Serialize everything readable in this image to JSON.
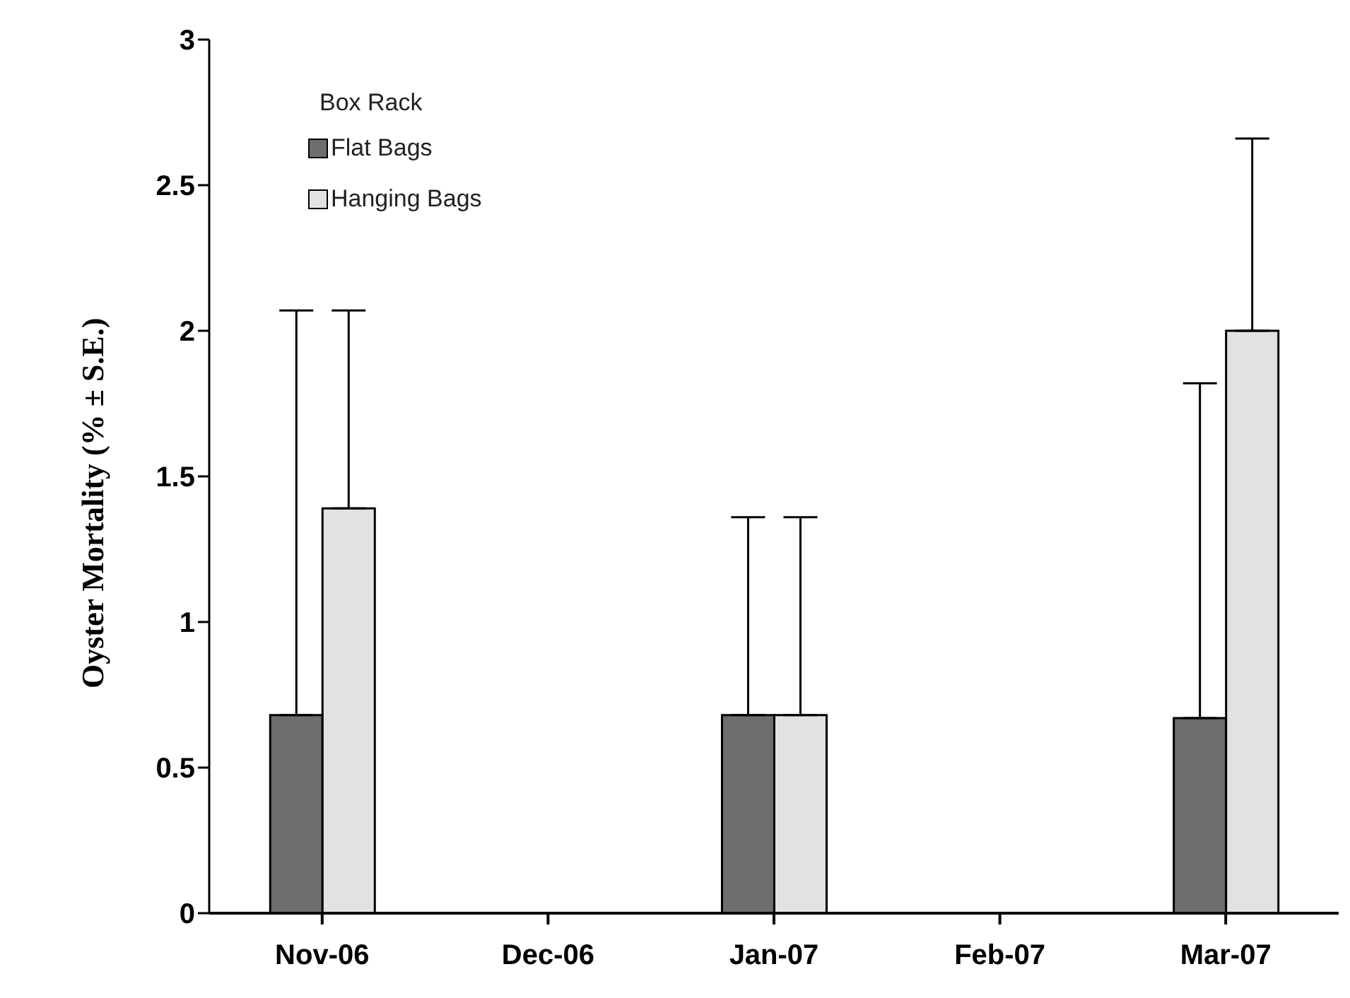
{
  "chart_data": {
    "type": "bar",
    "ylabel": "Oyster Mortality (% ± S.E.)",
    "legend_title": "Box Rack",
    "categories": [
      "Nov-06",
      "Dec-06",
      "Jan-07",
      "Feb-07",
      "Mar-07"
    ],
    "series": [
      {
        "name": "Flat Bags",
        "color": "#6e6e6e",
        "values": [
          0.68,
          null,
          0.68,
          null,
          0.67
        ],
        "errors": [
          [
            0.68,
            2.07
          ],
          null,
          [
            0.68,
            1.36
          ],
          null,
          [
            0.67,
            1.82
          ]
        ]
      },
      {
        "name": "Hanging Bags",
        "color": "#e2e2e2",
        "values": [
          1.39,
          null,
          0.68,
          null,
          2.0
        ],
        "errors": [
          [
            1.39,
            2.07
          ],
          null,
          [
            0.68,
            1.36
          ],
          null,
          [
            2.0,
            2.66
          ]
        ]
      }
    ],
    "ylim": [
      0,
      3
    ],
    "yticks": [
      0,
      0.5,
      1,
      1.5,
      2,
      2.5,
      3
    ],
    "grid": false,
    "legend": "top left"
  }
}
